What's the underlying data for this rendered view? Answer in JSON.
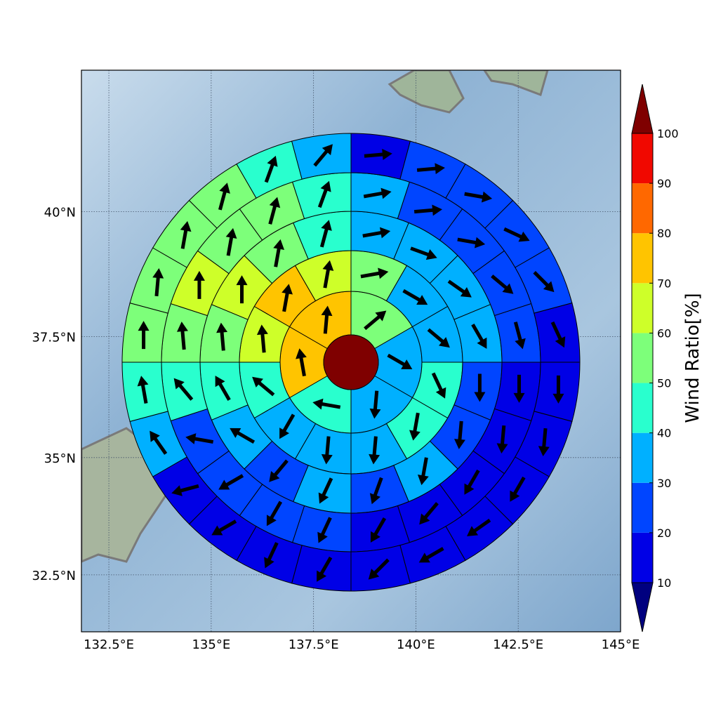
{
  "chart_data": {
    "type": "polar-sectors",
    "xlim": [
      131.83,
      145.0
    ],
    "ylim": [
      31.26,
      42.72
    ],
    "xticks": [
      {
        "value": 132.5,
        "label": "132.5°E"
      },
      {
        "value": 135,
        "label": "135°E"
      },
      {
        "value": 137.5,
        "label": "137.5°E"
      },
      {
        "value": 140,
        "label": "140°E"
      },
      {
        "value": 142.5,
        "label": "142.5°E"
      },
      {
        "value": 145,
        "label": "145°E"
      }
    ],
    "yticks": [
      {
        "value": 32.5,
        "label": "32.5°N"
      },
      {
        "value": 35,
        "label": "35°N"
      },
      {
        "value": 37.5,
        "label": "37.5°N"
      },
      {
        "value": 40,
        "label": "40°N"
      }
    ],
    "grid": true,
    "rings": [
      {
        "values": [
          55,
          35,
          35,
          45,
          75,
          75
        ],
        "directions": [
          40,
          -30,
          -95,
          170,
          100,
          85
        ]
      },
      {
        "values": [
          55,
          35,
          35,
          45,
          45,
          35,
          35,
          35,
          45,
          65,
          75,
          65
        ],
        "directions": [
          10,
          -30,
          -40,
          -65,
          -100,
          -95,
          -95,
          -120,
          140,
          95,
          80,
          80
        ]
      },
      {
        "values": [
          35,
          35,
          35,
          35,
          25,
          25,
          35,
          25,
          35,
          25,
          35,
          45,
          55,
          65,
          55,
          45
        ],
        "directions": [
          10,
          -20,
          -35,
          -60,
          -90,
          -95,
          -100,
          -110,
          -115,
          -130,
          150,
          120,
          95,
          90,
          80,
          75
        ]
      },
      {
        "values": [
          35,
          25,
          25,
          25,
          25,
          15,
          15,
          15,
          15,
          15,
          25,
          25,
          25,
          25,
          45,
          55,
          65,
          55,
          55,
          45
        ],
        "directions": [
          10,
          5,
          -10,
          -40,
          -75,
          -90,
          -95,
          -120,
          -130,
          -120,
          -115,
          -120,
          -150,
          170,
          130,
          95,
          90,
          80,
          75,
          70
        ]
      },
      {
        "values": [
          15,
          25,
          25,
          25,
          25,
          15,
          15,
          15,
          15,
          15,
          15,
          15,
          15,
          15,
          15,
          15,
          35,
          45,
          55,
          55,
          55,
          55,
          45,
          35
        ],
        "directions": [
          5,
          5,
          -10,
          -25,
          -45,
          -65,
          -90,
          -95,
          -120,
          -145,
          -150,
          -135,
          -120,
          -115,
          -150,
          -165,
          125,
          100,
          90,
          85,
          80,
          75,
          70,
          50
        ]
      }
    ],
    "colorbar": {
      "label": "Wind Ratio[%]",
      "ticks": [
        10,
        20,
        30,
        40,
        50,
        60,
        70,
        80,
        90,
        100
      ],
      "colors": [
        "#00007f",
        "#0000e6",
        "#0045ff",
        "#00b0ff",
        "#29ffce",
        "#7dff7a",
        "#ceff29",
        "#ffc400",
        "#ff6800",
        "#f10800",
        "#7f0000"
      ]
    }
  }
}
